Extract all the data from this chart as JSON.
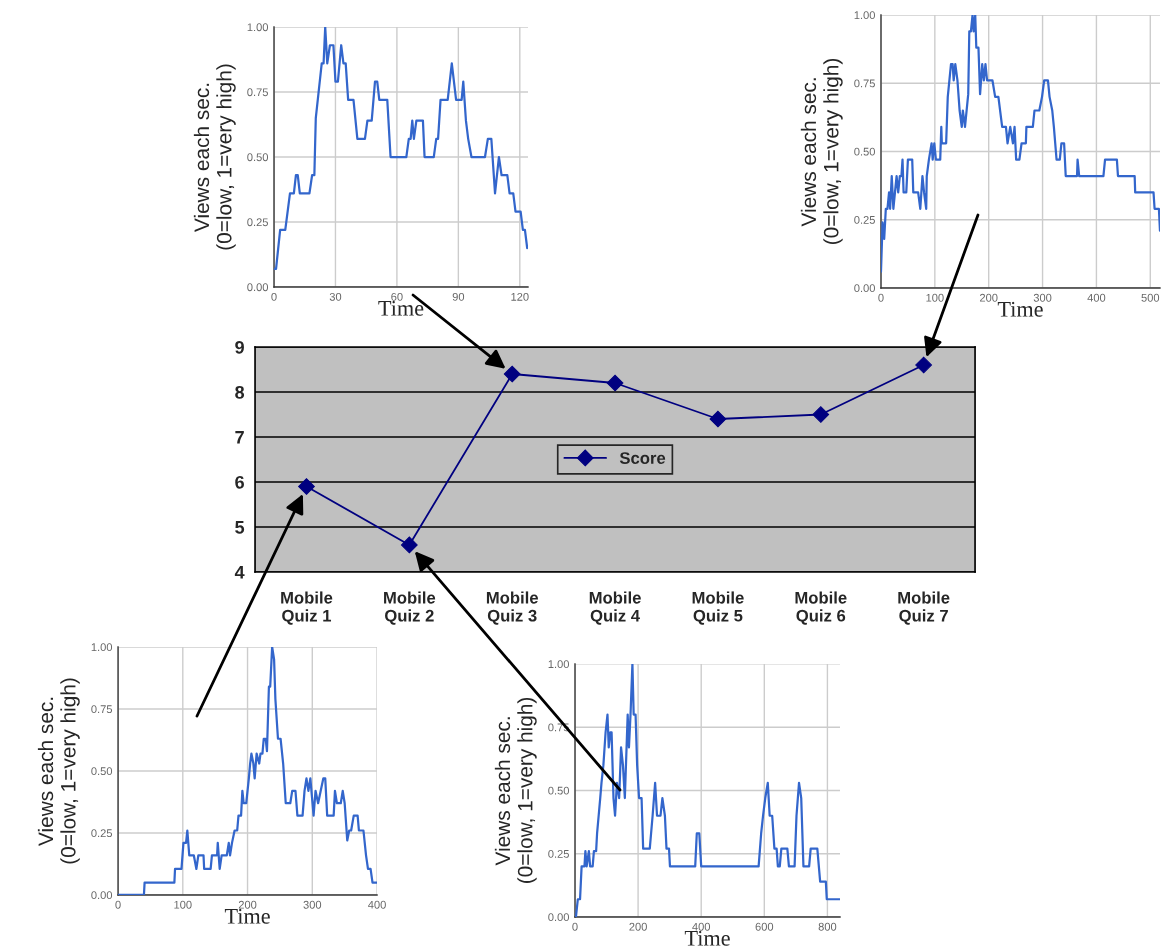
{
  "chart_data": [
    {
      "type": "line",
      "xlabel": "Time",
      "ylabel": "Views each sec.\n(0=low, 1=very high)",
      "xlim": [
        0,
        124
      ],
      "xticks": [
        0,
        30,
        60,
        90,
        120
      ],
      "ylim": [
        0,
        1
      ],
      "yticks": [
        {
          "value": 0,
          "label": "0.00"
        },
        {
          "value": 0.25,
          "label": "0.25"
        },
        {
          "value": 0.5,
          "label": "0.50"
        },
        {
          "value": 0.75,
          "label": "0.75"
        },
        {
          "value": 1,
          "label": "1.00"
        }
      ],
      "grid": true,
      "marker": "none",
      "line_style": "solid",
      "series": [
        {
          "color": "#3366cc",
          "x": [
            0,
            1,
            3,
            5.5,
            7.8,
            9.7,
            10.7,
            11.6,
            12.6,
            17.3,
            18.6,
            19.7,
            20.4,
            23.3,
            24.2,
            25,
            26,
            27.3,
            29,
            30,
            31.2,
            32.8,
            33.9,
            35,
            36.2,
            38.8,
            40.7,
            44.4,
            45.6,
            47.7,
            49.3,
            50.4,
            51.4,
            55.3,
            56.9,
            64.6,
            65.8,
            66.7,
            67.5,
            68.3,
            69.5,
            72.7,
            73.5,
            78,
            79.2,
            80.1,
            81.3,
            84.8,
            86.8,
            88.9,
            91.6,
            92.4,
            93.7,
            94.8,
            96.4,
            103,
            104.4,
            106.1,
            107.9,
            109.8,
            111.1,
            113.9,
            115,
            116.8,
            117.9,
            120.4,
            121.5,
            122.5,
            123.6
          ],
          "values": [
            0.07,
            0.07,
            0.22,
            0.22,
            0.36,
            0.36,
            0.43,
            0.43,
            0.36,
            0.36,
            0.43,
            0.43,
            0.65,
            0.86,
            0.86,
            1.0,
            0.86,
            0.93,
            0.93,
            0.79,
            0.79,
            0.93,
            0.86,
            0.86,
            0.72,
            0.72,
            0.57,
            0.57,
            0.64,
            0.64,
            0.79,
            0.79,
            0.72,
            0.72,
            0.5,
            0.5,
            0.57,
            0.57,
            0.64,
            0.57,
            0.64,
            0.64,
            0.5,
            0.5,
            0.57,
            0.57,
            0.72,
            0.72,
            0.86,
            0.72,
            0.72,
            0.79,
            0.64,
            0.57,
            0.5,
            0.5,
            0.57,
            0.57,
            0.36,
            0.5,
            0.43,
            0.43,
            0.36,
            0.36,
            0.29,
            0.29,
            0.22,
            0.22,
            0.15
          ]
        }
      ]
    },
    {
      "type": "line",
      "xlabel": "Time",
      "ylabel": "Views each sec.\n(0=low, 1=very high)",
      "xlim": [
        0,
        518
      ],
      "xticks": [
        0,
        100,
        200,
        300,
        400,
        500
      ],
      "ylim": [
        0,
        1
      ],
      "yticks": [
        {
          "value": 0,
          "label": "0.00"
        },
        {
          "value": 0.25,
          "label": "0.25"
        },
        {
          "value": 0.5,
          "label": "0.50"
        },
        {
          "value": 0.75,
          "label": "0.75"
        },
        {
          "value": 1,
          "label": "1.00"
        }
      ],
      "grid": true,
      "marker": "none",
      "line_style": "solid",
      "series": [
        {
          "color": "#3366cc",
          "x": [
            0,
            3,
            6,
            9,
            12,
            15,
            17,
            20,
            23,
            26,
            29,
            32,
            35,
            38,
            40,
            42,
            47,
            50,
            58,
            60,
            69,
            73,
            77,
            80,
            84,
            85,
            89,
            94,
            96,
            99,
            102,
            110,
            112,
            113,
            121,
            124,
            130,
            133,
            135,
            138,
            142,
            146,
            150,
            152,
            156,
            162,
            164,
            167,
            170,
            172,
            175,
            177,
            181,
            184,
            188,
            191,
            194,
            197,
            207,
            212,
            218,
            225,
            232,
            235,
            240,
            245,
            248,
            251,
            257,
            261,
            269,
            270,
            282,
            285,
            294,
            299,
            303,
            310,
            313,
            318,
            321,
            326,
            332,
            335,
            340,
            343,
            364,
            365,
            368,
            413,
            416,
            438,
            440,
            471,
            472,
            506,
            508,
            516,
            518
          ],
          "values": [
            0.06,
            0.24,
            0.18,
            0.29,
            0.29,
            0.35,
            0.29,
            0.41,
            0.29,
            0.35,
            0.41,
            0.35,
            0.41,
            0.41,
            0.47,
            0.35,
            0.35,
            0.47,
            0.47,
            0.35,
            0.35,
            0.29,
            0.41,
            0.35,
            0.29,
            0.41,
            0.47,
            0.53,
            0.47,
            0.53,
            0.47,
            0.47,
            0.59,
            0.53,
            0.53,
            0.7,
            0.82,
            0.82,
            0.76,
            0.82,
            0.76,
            0.65,
            0.59,
            0.65,
            0.59,
            0.71,
            0.94,
            0.94,
            1.0,
            0.94,
            1.0,
            0.88,
            0.88,
            0.71,
            0.82,
            0.76,
            0.82,
            0.76,
            0.76,
            0.7,
            0.7,
            0.59,
            0.59,
            0.53,
            0.59,
            0.53,
            0.59,
            0.47,
            0.47,
            0.53,
            0.53,
            0.59,
            0.59,
            0.65,
            0.65,
            0.7,
            0.76,
            0.76,
            0.7,
            0.65,
            0.59,
            0.47,
            0.47,
            0.53,
            0.53,
            0.41,
            0.41,
            0.47,
            0.41,
            0.41,
            0.47,
            0.47,
            0.41,
            0.41,
            0.35,
            0.35,
            0.29,
            0.29,
            0.21
          ]
        }
      ]
    },
    {
      "type": "line",
      "categories": [
        "Mobile\nQuiz 1",
        "Mobile\nQuiz 2",
        "Mobile\nQuiz 3",
        "Mobile\nQuiz 4",
        "Mobile\nQuiz 5",
        "Mobile\nQuiz 6",
        "Mobile\nQuiz 7"
      ],
      "ylim": [
        4,
        9
      ],
      "yticks": [
        4,
        5,
        6,
        7,
        8,
        9
      ],
      "grid": "y",
      "legend": "center",
      "marker": "diamond",
      "line_style": "solid",
      "series": [
        {
          "name": "Score",
          "color": "#000080",
          "values": [
            5.9,
            4.6,
            8.4,
            8.2,
            7.4,
            7.5,
            8.6
          ]
        }
      ]
    },
    {
      "type": "line",
      "xlabel": "Time",
      "ylabel": "Views each sec.\n(0=low, 1=very high)",
      "xlim": [
        0,
        400
      ],
      "xticks": [
        0,
        100,
        200,
        300,
        400
      ],
      "ylim": [
        0,
        1
      ],
      "yticks": [
        {
          "value": 0,
          "label": "0.00"
        },
        {
          "value": 0.25,
          "label": "0.25"
        },
        {
          "value": 0.5,
          "label": "0.50"
        },
        {
          "value": 0.75,
          "label": "0.75"
        },
        {
          "value": 1,
          "label": "1.00"
        }
      ],
      "grid": true,
      "marker": "none",
      "line_style": "solid",
      "series": [
        {
          "color": "#3366cc",
          "x": [
            0,
            40,
            41,
            87,
            88,
            98,
            101,
            105,
            107,
            110,
            117,
            121,
            124,
            132,
            133,
            143,
            145,
            153,
            154,
            157,
            160,
            168,
            171,
            173,
            176,
            180,
            184,
            186,
            190,
            192,
            194,
            198,
            202,
            204,
            206,
            209,
            211,
            214,
            218,
            220,
            223,
            225,
            228,
            230,
            233,
            235,
            238,
            241,
            243,
            247,
            251,
            255,
            259,
            266,
            269,
            274,
            277,
            285,
            288,
            291,
            294,
            297,
            302,
            305,
            309,
            313,
            317,
            320,
            323,
            333,
            335,
            338,
            344,
            347,
            350,
            354,
            357,
            360,
            364,
            370,
            372,
            379,
            383,
            386,
            390,
            393,
            400
          ],
          "values": [
            0,
            0,
            0.05,
            0.05,
            0.105,
            0.105,
            0.21,
            0.21,
            0.26,
            0.16,
            0.16,
            0.105,
            0.16,
            0.16,
            0.105,
            0.105,
            0.16,
            0.16,
            0.21,
            0.105,
            0.16,
            0.16,
            0.21,
            0.16,
            0.21,
            0.26,
            0.26,
            0.32,
            0.32,
            0.42,
            0.37,
            0.37,
            0.47,
            0.53,
            0.57,
            0.53,
            0.47,
            0.57,
            0.53,
            0.57,
            0.57,
            0.63,
            0.63,
            0.58,
            0.84,
            0.84,
            1.0,
            0.95,
            0.79,
            0.63,
            0.63,
            0.53,
            0.37,
            0.37,
            0.42,
            0.42,
            0.32,
            0.32,
            0.42,
            0.47,
            0.42,
            0.47,
            0.32,
            0.42,
            0.37,
            0.42,
            0.47,
            0.47,
            0.32,
            0.32,
            0.42,
            0.37,
            0.37,
            0.42,
            0.37,
            0.22,
            0.26,
            0.26,
            0.32,
            0.32,
            0.26,
            0.26,
            0.16,
            0.105,
            0.105,
            0.05,
            0.05
          ]
        }
      ]
    },
    {
      "type": "line",
      "xlabel": "Time",
      "ylabel": "Views each sec.\n(0=low, 1=very high)",
      "xlim": [
        0,
        840
      ],
      "xticks": [
        0,
        200,
        400,
        600,
        800
      ],
      "ylim": [
        0,
        1
      ],
      "yticks": [
        {
          "value": 0,
          "label": "0.00"
        },
        {
          "value": 0.25,
          "label": "0.25"
        },
        {
          "value": 0.5,
          "label": "0.50"
        },
        {
          "value": 0.75,
          "label": "0.75"
        },
        {
          "value": 1,
          "label": "1.00"
        }
      ],
      "grid": true,
      "marker": "none",
      "line_style": "solid",
      "series": [
        {
          "color": "#3366cc",
          "x": [
            3,
            9,
            16,
            21,
            30,
            33,
            37,
            44,
            48,
            56,
            60,
            67,
            70,
            75,
            80,
            84,
            90,
            97,
            103,
            107,
            112,
            116,
            122,
            127,
            133,
            140,
            146,
            152,
            158,
            167,
            171,
            176,
            182,
            186,
            192,
            197,
            203,
            211,
            216,
            237,
            246,
            254,
            260,
            271,
            277,
            285,
            290,
            298,
            301,
            381,
            386,
            394,
            400,
            582,
            590,
            596,
            603,
            611,
            617,
            625,
            632,
            639,
            643,
            649,
            654,
            673,
            678,
            696,
            702,
            710,
            717,
            724,
            742,
            747,
            768,
            777,
            795,
            798,
            840
          ],
          "values": [
            0,
            0.07,
            0.07,
            0.2,
            0.2,
            0.26,
            0.2,
            0.26,
            0.2,
            0.2,
            0.26,
            0.26,
            0.33,
            0.4,
            0.47,
            0.53,
            0.6,
            0.73,
            0.8,
            0.67,
            0.73,
            0.73,
            0.47,
            0.4,
            0.53,
            0.47,
            0.67,
            0.6,
            0.47,
            0.8,
            0.67,
            0.8,
            1.0,
            0.8,
            0.8,
            0.6,
            0.47,
            0.47,
            0.27,
            0.27,
            0.4,
            0.53,
            0.4,
            0.4,
            0.47,
            0.4,
            0.27,
            0.27,
            0.2,
            0.2,
            0.33,
            0.33,
            0.2,
            0.2,
            0.33,
            0.4,
            0.47,
            0.53,
            0.4,
            0.4,
            0.27,
            0.27,
            0.2,
            0.2,
            0.27,
            0.27,
            0.2,
            0.2,
            0.4,
            0.53,
            0.47,
            0.2,
            0.2,
            0.27,
            0.27,
            0.14,
            0.14,
            0.07,
            0.07
          ]
        }
      ]
    }
  ]
}
